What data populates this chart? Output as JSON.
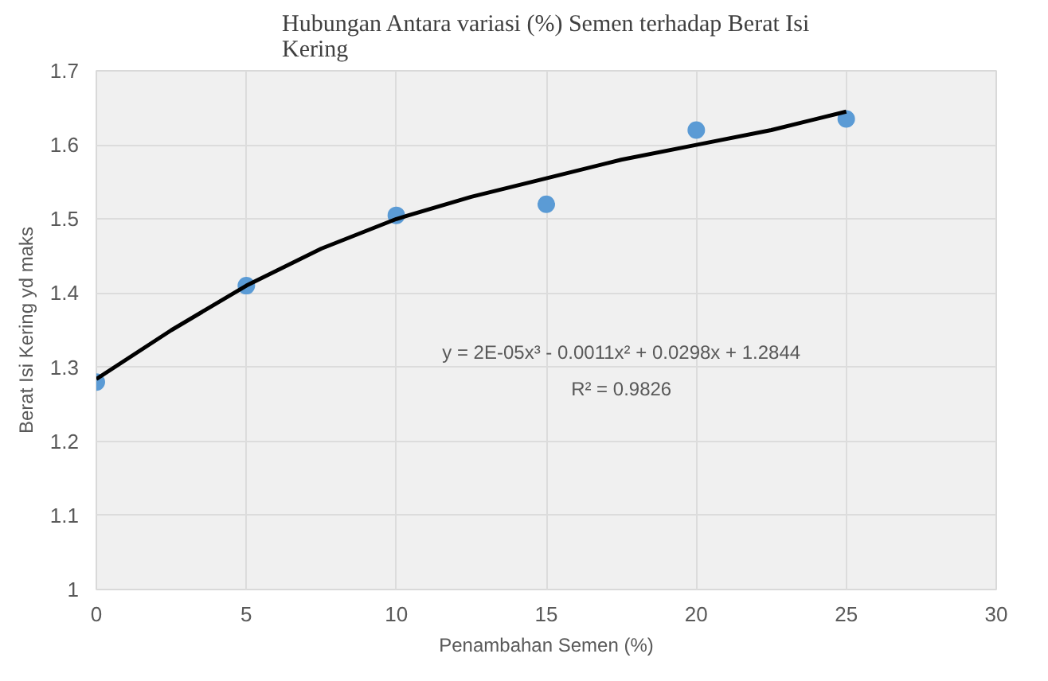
{
  "chart_data": {
    "type": "scatter",
    "title": "Hubungan Antara variasi (%) Semen terhadap Berat Isi\nKering",
    "xlabel": "Penambahan Semen (%)",
    "ylabel": "Berat Isi Kering yd maks",
    "x": [
      0,
      5,
      10,
      15,
      20,
      25
    ],
    "series": [
      {
        "color": "#5b9bd5",
        "marker": "circle",
        "values": [
          1.28,
          1.41,
          1.505,
          1.52,
          1.62,
          1.635
        ]
      },
      {
        "type": "line",
        "color": "#000000",
        "line_style": "solid",
        "x": [
          0,
          2.5,
          5,
          7.5,
          10,
          12.5,
          15,
          17.5,
          20,
          22.5,
          25
        ],
        "values": [
          1.284,
          1.35,
          1.41,
          1.46,
          1.5,
          1.53,
          1.555,
          1.58,
          1.6,
          1.62,
          1.645
        ]
      }
    ],
    "xlim": [
      0,
      30
    ],
    "xticks": [
      0,
      5,
      10,
      15,
      20,
      25,
      30
    ],
    "ylim": [
      1,
      1.7
    ],
    "yticks": [
      {
        "value": 1,
        "label": "1"
      },
      1.1,
      1.2,
      1.3,
      1.4,
      1.5,
      1.6,
      1.7
    ],
    "grid": true,
    "annotations": [
      "y = 2E-05x³ - 0.0011x² + 0.0298x + 1.2844",
      "R² = 0.9826"
    ]
  }
}
